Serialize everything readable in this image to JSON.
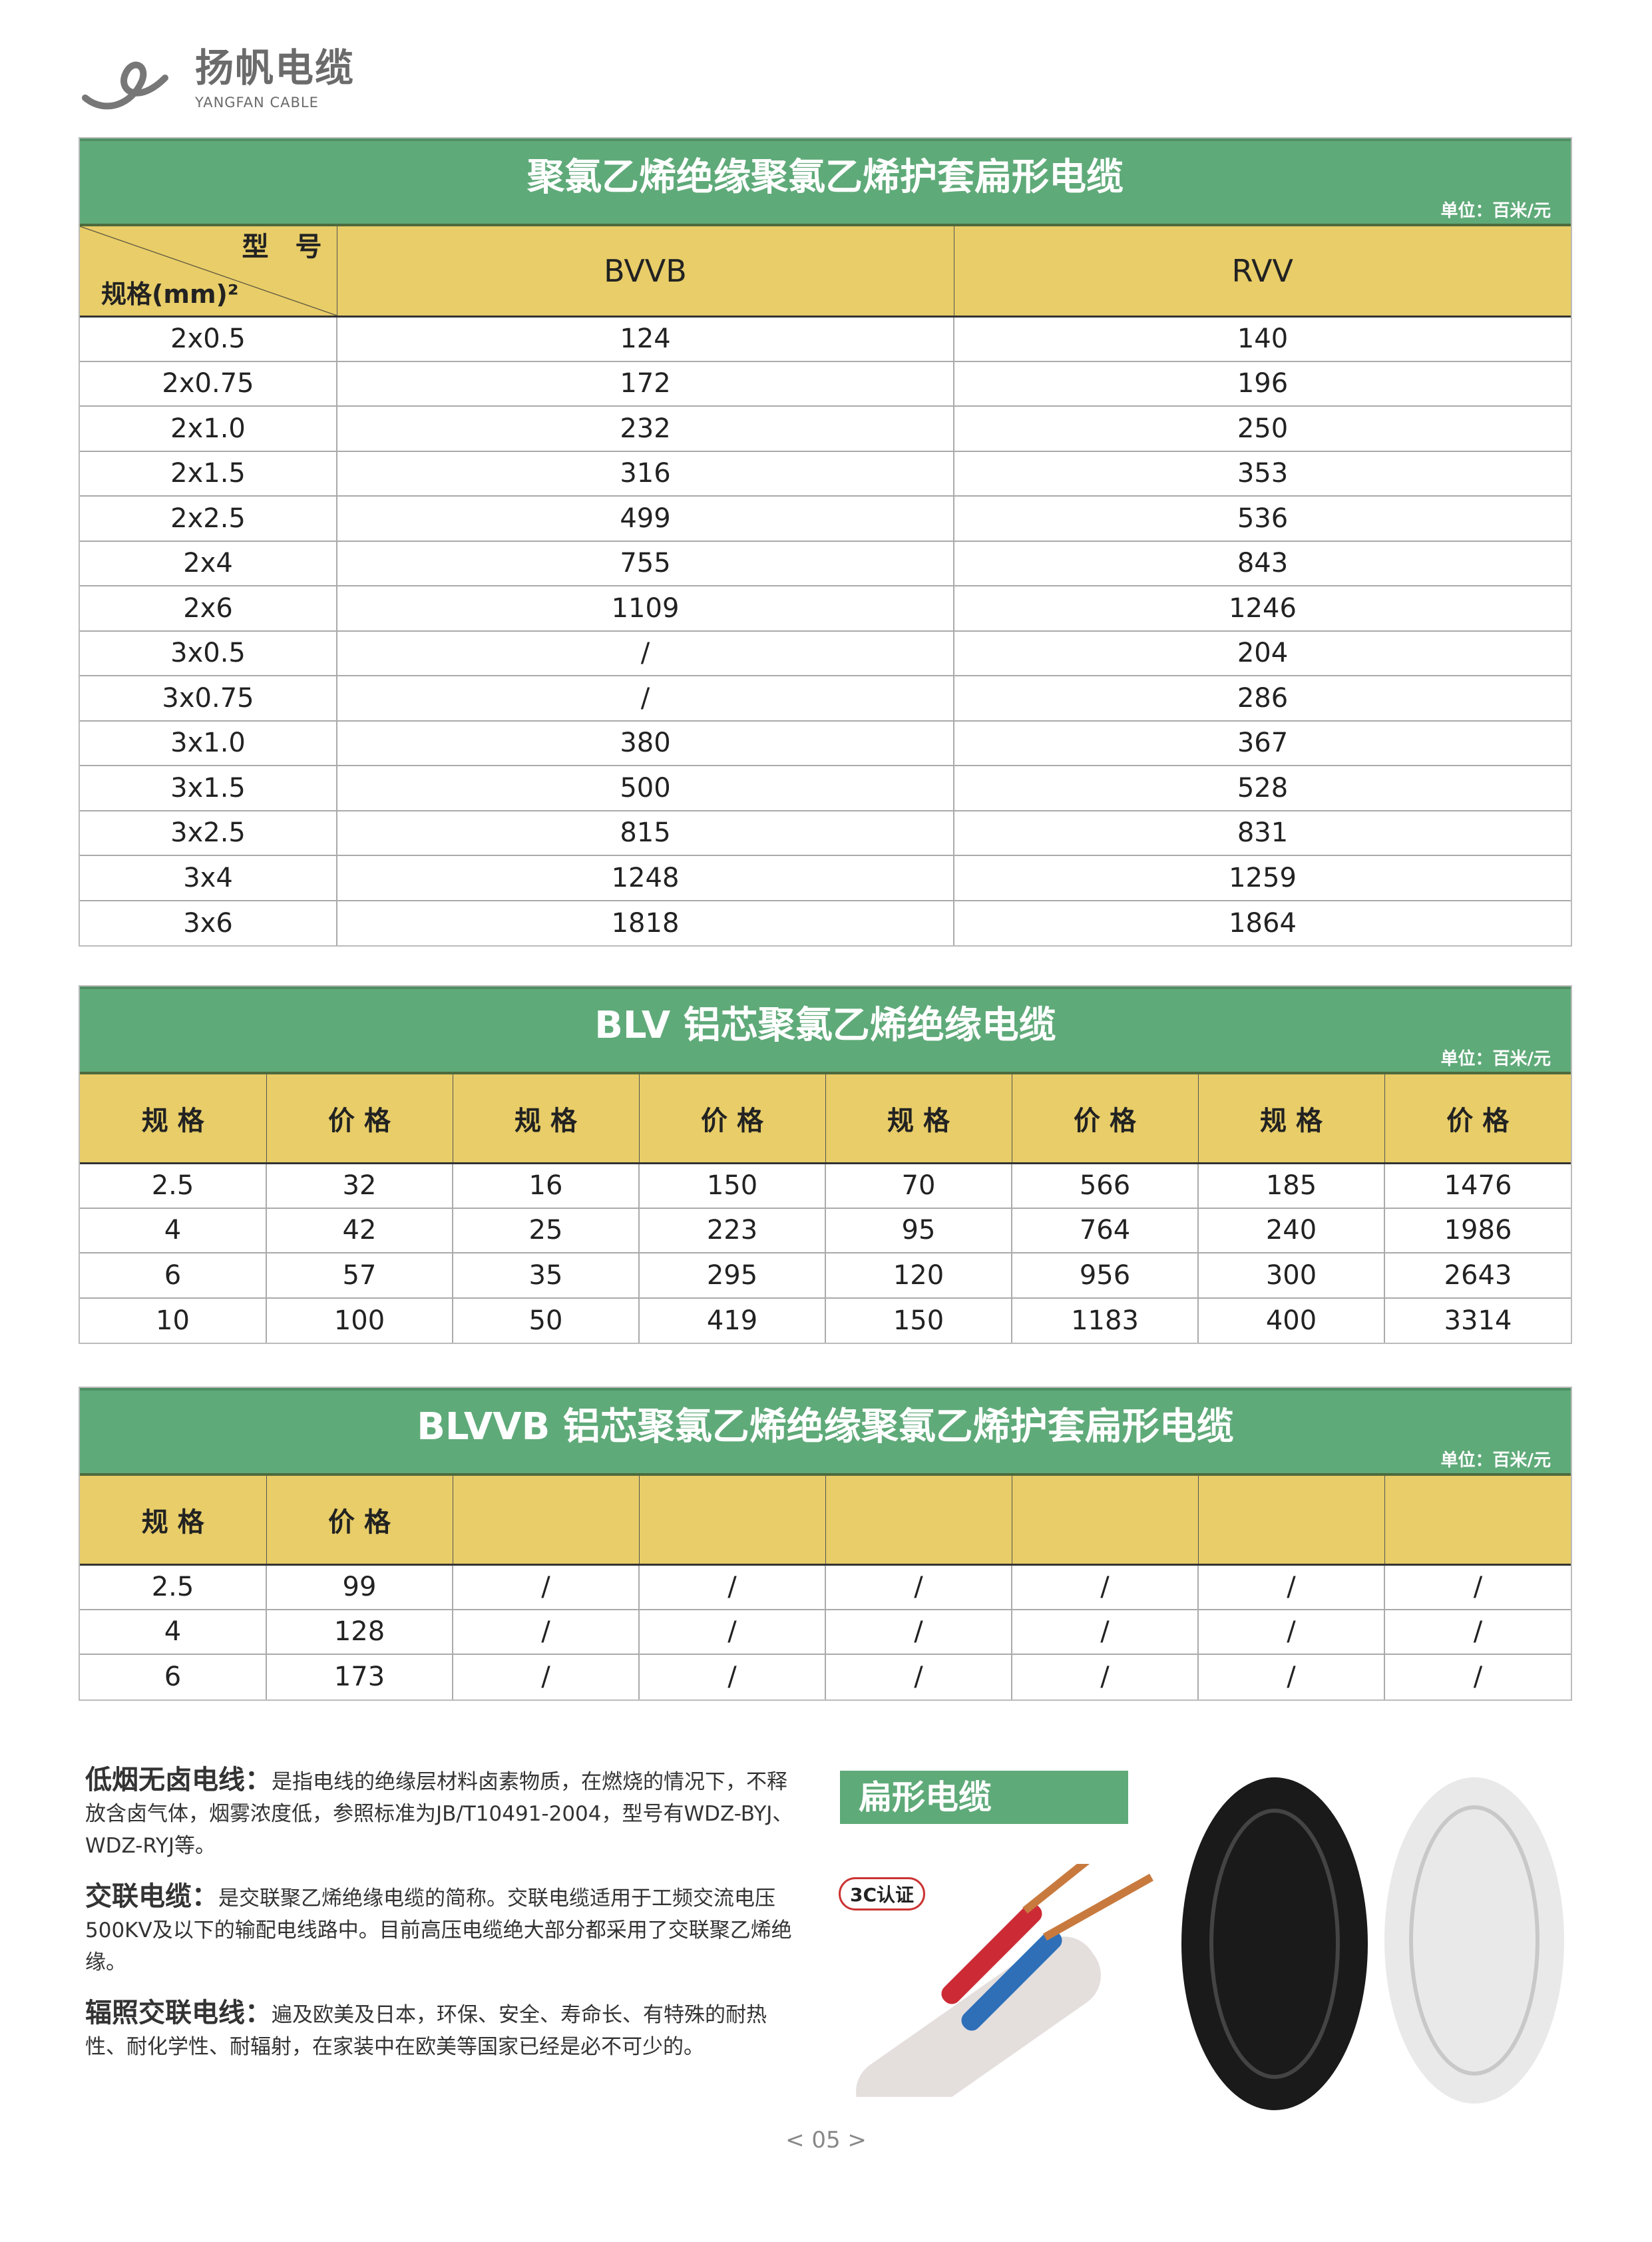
{
  "brand": {
    "name_cn": "扬帆电缆",
    "name_en": "YANGFAN CABLE"
  },
  "table1": {
    "title": "聚氯乙烯绝缘聚氯乙烯护套扁形电缆",
    "unit": "单位：百米/元",
    "corner_top": "型　号",
    "corner_bottom": "规格(mm)²",
    "columns": [
      "BVVB",
      "RVV"
    ],
    "rows": [
      [
        "2x0.5",
        "124",
        "140"
      ],
      [
        "2x0.75",
        "172",
        "196"
      ],
      [
        "2x1.0",
        "232",
        "250"
      ],
      [
        "2x1.5",
        "316",
        "353"
      ],
      [
        "2x2.5",
        "499",
        "536"
      ],
      [
        "2x4",
        "755",
        "843"
      ],
      [
        "2x6",
        "1109",
        "1246"
      ],
      [
        "3x0.5",
        "/",
        "204"
      ],
      [
        "3x0.75",
        "/",
        "286"
      ],
      [
        "3x1.0",
        "380",
        "367"
      ],
      [
        "3x1.5",
        "500",
        "528"
      ],
      [
        "3x2.5",
        "815",
        "831"
      ],
      [
        "3x4",
        "1248",
        "1259"
      ],
      [
        "3x6",
        "1818",
        "1864"
      ]
    ]
  },
  "table2": {
    "title": "BLV 铝芯聚氯乙烯绝缘电缆",
    "unit": "单位：百米/元",
    "headers": [
      "规 格",
      "价 格",
      "规 格",
      "价 格",
      "规 格",
      "价 格",
      "规 格",
      "价 格"
    ],
    "rows": [
      [
        "2.5",
        "32",
        "16",
        "150",
        "70",
        "566",
        "185",
        "1476"
      ],
      [
        "4",
        "42",
        "25",
        "223",
        "95",
        "764",
        "240",
        "1986"
      ],
      [
        "6",
        "57",
        "35",
        "295",
        "120",
        "956",
        "300",
        "2643"
      ],
      [
        "10",
        "100",
        "50",
        "419",
        "150",
        "1183",
        "400",
        "3314"
      ]
    ]
  },
  "table3": {
    "title": "BLVVB 铝芯聚氯乙烯绝缘聚氯乙烯护套扁形电缆",
    "unit": "单位：百米/元",
    "headers": [
      "规 格",
      "价 格",
      "",
      "",
      "",
      "",
      "",
      ""
    ],
    "rows": [
      [
        "2.5",
        "99",
        "/",
        "/",
        "/",
        "/",
        "/",
        "/"
      ],
      [
        "4",
        "128",
        "/",
        "/",
        "/",
        "/",
        "/",
        "/"
      ],
      [
        "6",
        "173",
        "/",
        "/",
        "/",
        "/",
        "/",
        "/"
      ]
    ]
  },
  "notes": [
    {
      "term": "低烟无卤电线：",
      "text": "是指电线的绝缘层材料卤素物质，在燃烧的情况下，不释放含卤气体，烟雾浓度低，参照标准为JB/T10491-2004，型号有WDZ-BYJ、WDZ-RYJ等。"
    },
    {
      "term": "交联电缆：",
      "text": "是交联聚乙烯绝缘电缆的简称。交联电缆适用于工频交流电压500KV及以下的输配电线路中。目前高压电缆绝大部分都采用了交联聚乙烯绝缘。"
    },
    {
      "term": "辐照交联电线：",
      "text": "遍及欧美及日本，环保、安全、寿命长、有特殊的耐热性、耐化学性、耐辐射，在家装中在欧美等国家已经是必不可少的。"
    }
  ],
  "photo": {
    "label": "扁形电缆",
    "badge": "3C认证"
  },
  "page": "< 05 >",
  "colors": {
    "green": "#5faa79",
    "yellow": "#e8cd68"
  }
}
